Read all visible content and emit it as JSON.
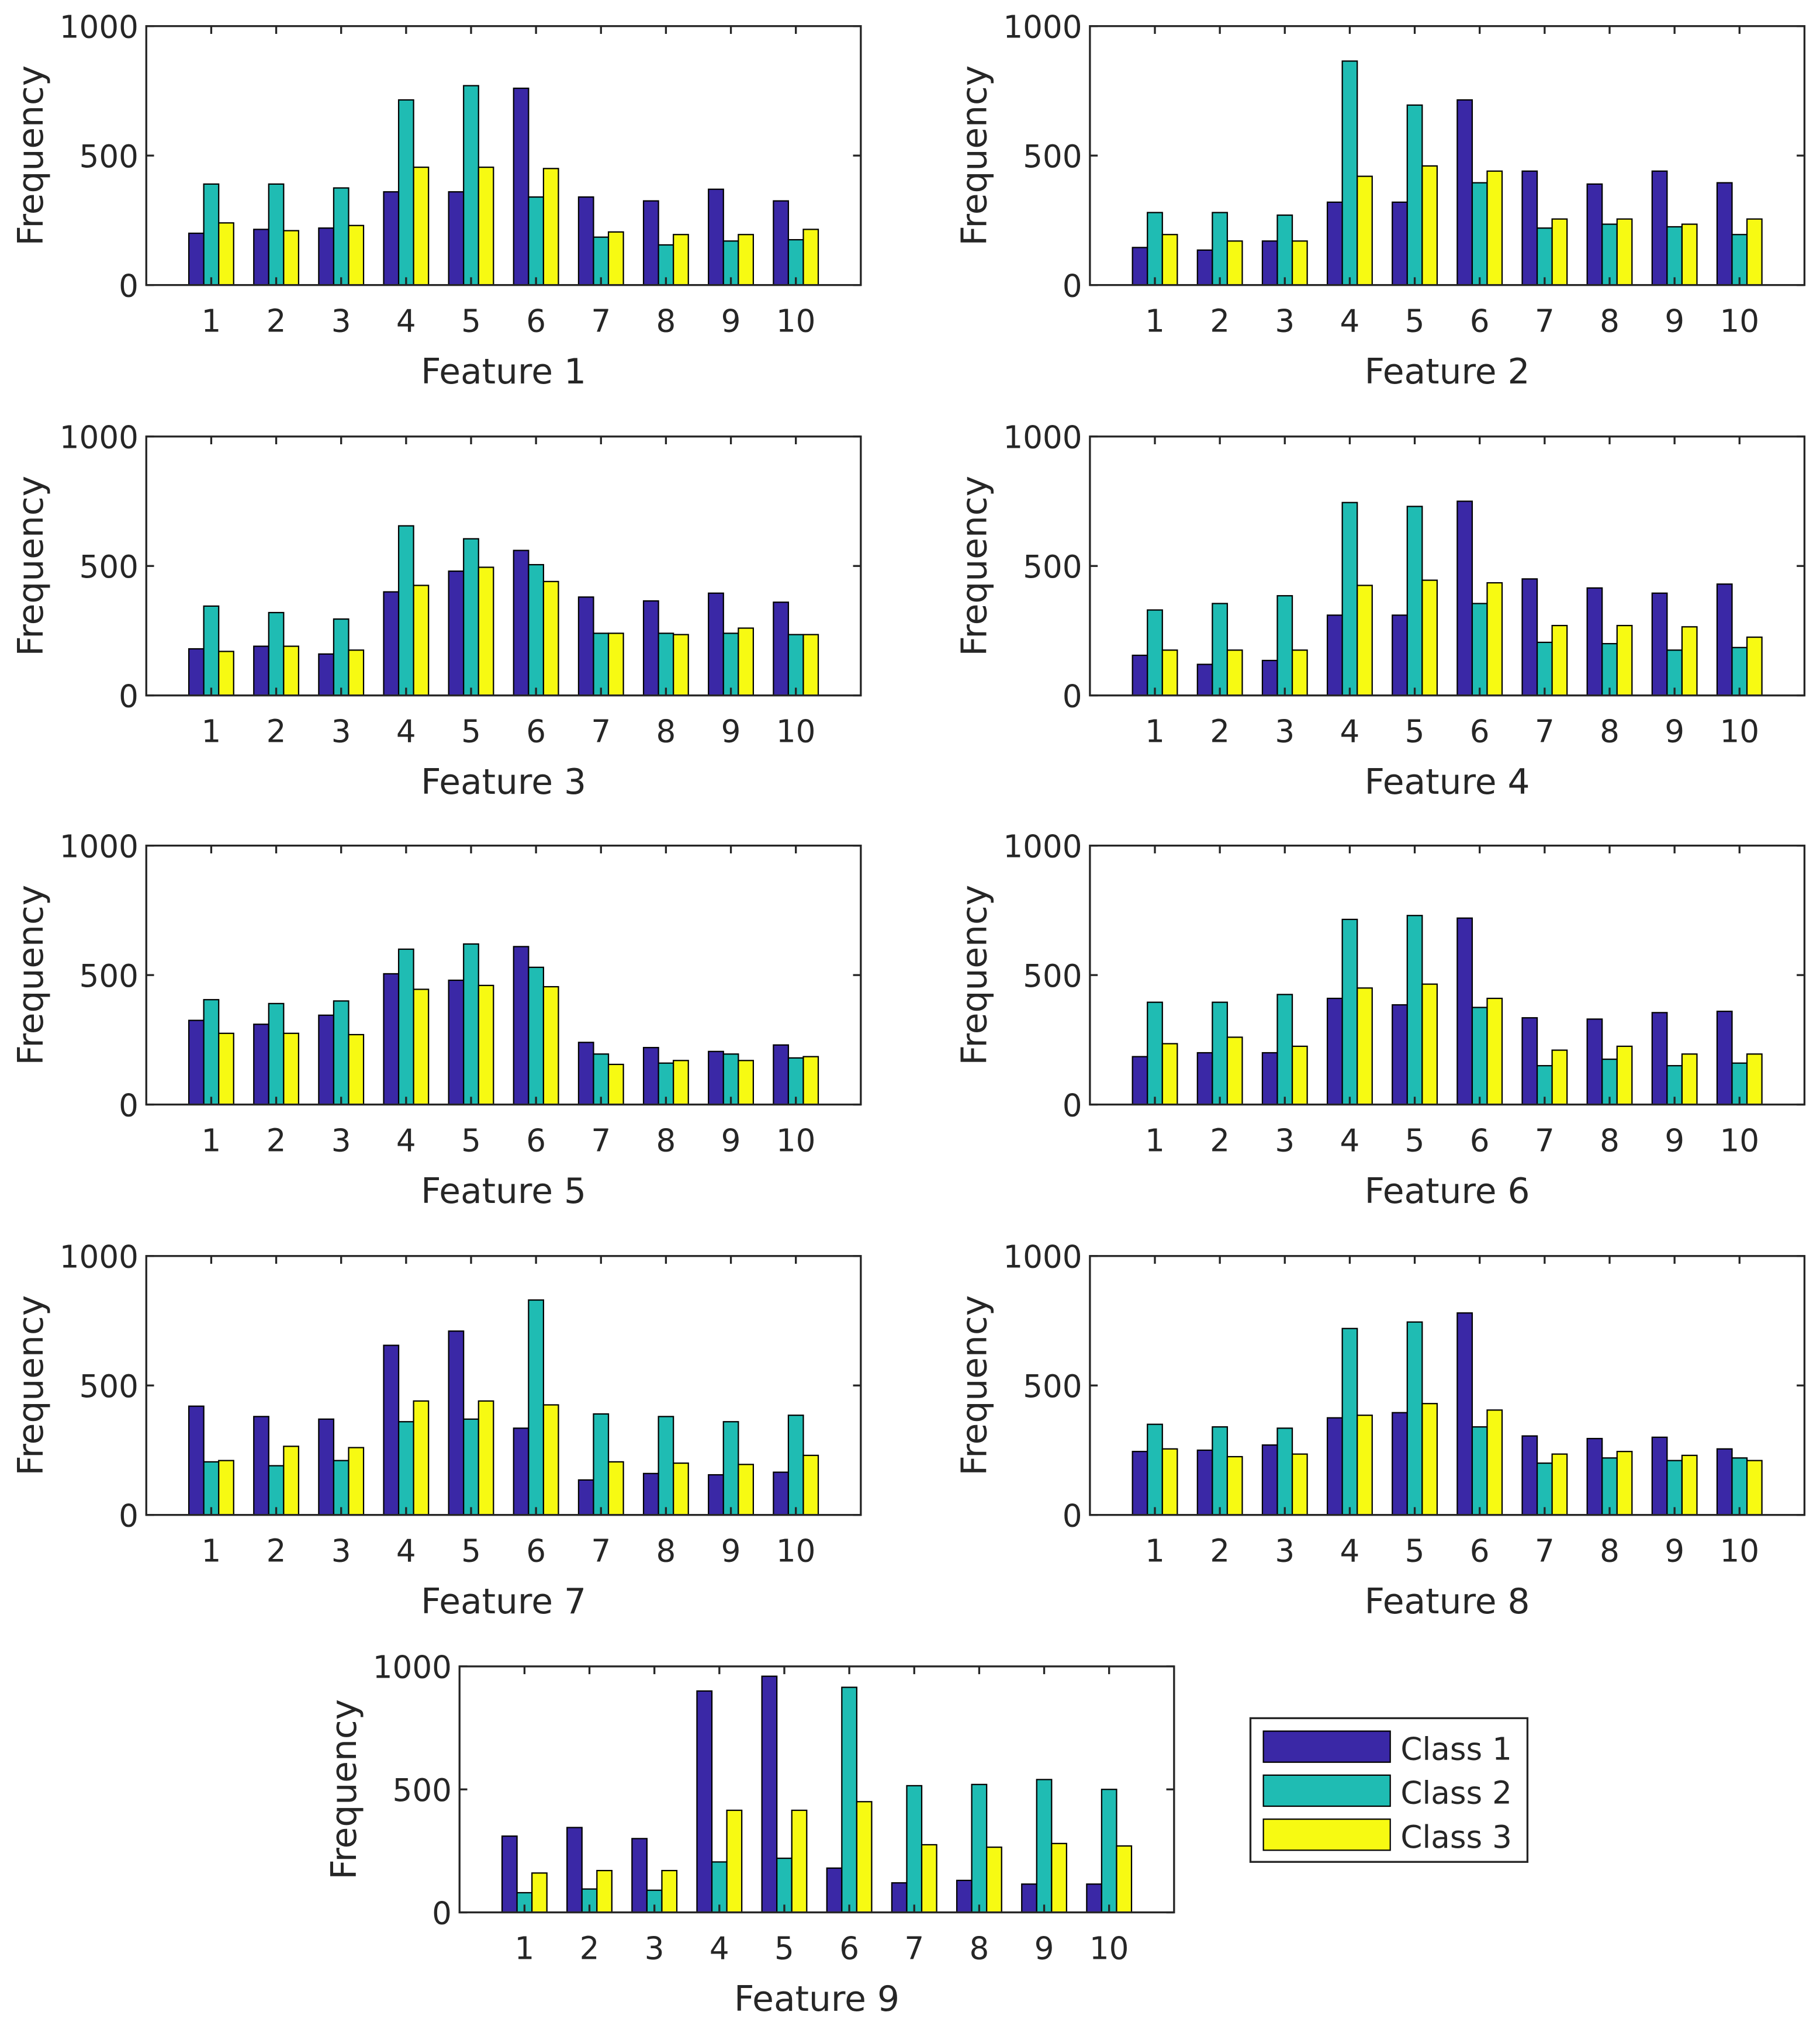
{
  "chart_data": {
    "type": "bar",
    "categories": [
      "1",
      "2",
      "3",
      "4",
      "5",
      "6",
      "7",
      "8",
      "9",
      "10"
    ],
    "ylabel": "Frequency",
    "ylim": [
      0,
      1000
    ],
    "yticks": [
      "0",
      "500",
      "1000"
    ],
    "legend": {
      "placement": "bottom-right",
      "entries": [
        "Class 1",
        "Class 2",
        "Class 3"
      ]
    },
    "colors": [
      "#3a28a6",
      "#1fbcb3",
      "#f7fa12"
    ],
    "panels": [
      {
        "xlabel": "Feature 1",
        "series": [
          {
            "name": "Class 1",
            "values": [
              200,
              215,
              220,
              360,
              360,
              760,
              340,
              325,
              370,
              325
            ]
          },
          {
            "name": "Class 2",
            "values": [
              390,
              390,
              375,
              715,
              770,
              340,
              185,
              155,
              170,
              175
            ]
          },
          {
            "name": "Class 3",
            "values": [
              240,
              210,
              230,
              455,
              455,
              450,
              205,
              195,
              195,
              215
            ]
          }
        ]
      },
      {
        "xlabel": "Feature 2",
        "series": [
          {
            "name": "Class 1",
            "values": [
              145,
              135,
              170,
              320,
              320,
              715,
              440,
              390,
              440,
              395
            ]
          },
          {
            "name": "Class 2",
            "values": [
              280,
              280,
              270,
              865,
              695,
              395,
              220,
              235,
              225,
              195
            ]
          },
          {
            "name": "Class 3",
            "values": [
              195,
              170,
              170,
              420,
              460,
              440,
              255,
              255,
              235,
              255
            ]
          }
        ]
      },
      {
        "xlabel": "Feature 3",
        "series": [
          {
            "name": "Class 1",
            "values": [
              180,
              190,
              160,
              400,
              480,
              560,
              380,
              365,
              395,
              360
            ]
          },
          {
            "name": "Class 2",
            "values": [
              345,
              320,
              295,
              655,
              605,
              505,
              240,
              240,
              240,
              235
            ]
          },
          {
            "name": "Class 3",
            "values": [
              170,
              190,
              175,
              425,
              495,
              440,
              240,
              235,
              260,
              235
            ]
          }
        ]
      },
      {
        "xlabel": "Feature 4",
        "series": [
          {
            "name": "Class 1",
            "values": [
              155,
              120,
              135,
              310,
              310,
              750,
              450,
              415,
              395,
              430
            ]
          },
          {
            "name": "Class 2",
            "values": [
              330,
              355,
              385,
              745,
              730,
              355,
              205,
              200,
              175,
              185
            ]
          },
          {
            "name": "Class 3",
            "values": [
              175,
              175,
              175,
              425,
              445,
              435,
              270,
              270,
              265,
              225
            ]
          }
        ]
      },
      {
        "xlabel": "Feature 5",
        "series": [
          {
            "name": "Class 1",
            "values": [
              325,
              310,
              345,
              505,
              480,
              610,
              240,
              220,
              205,
              230
            ]
          },
          {
            "name": "Class 2",
            "values": [
              405,
              390,
              400,
              600,
              620,
              530,
              195,
              160,
              195,
              180
            ]
          },
          {
            "name": "Class 3",
            "values": [
              275,
              275,
              270,
              445,
              460,
              455,
              155,
              170,
              170,
              185
            ]
          }
        ]
      },
      {
        "xlabel": "Feature 6",
        "series": [
          {
            "name": "Class 1",
            "values": [
              185,
              200,
              200,
              410,
              385,
              720,
              335,
              330,
              355,
              360
            ]
          },
          {
            "name": "Class 2",
            "values": [
              395,
              395,
              425,
              715,
              730,
              375,
              150,
              175,
              150,
              160
            ]
          },
          {
            "name": "Class 3",
            "values": [
              235,
              260,
              225,
              450,
              465,
              410,
              210,
              225,
              195,
              195
            ]
          }
        ]
      },
      {
        "xlabel": "Feature 7",
        "series": [
          {
            "name": "Class 1",
            "values": [
              420,
              380,
              370,
              655,
              710,
              335,
              135,
              160,
              155,
              165
            ]
          },
          {
            "name": "Class 2",
            "values": [
              205,
              190,
              210,
              360,
              370,
              830,
              390,
              380,
              360,
              385
            ]
          },
          {
            "name": "Class 3",
            "values": [
              210,
              265,
              260,
              440,
              440,
              425,
              205,
              200,
              195,
              230
            ]
          }
        ]
      },
      {
        "xlabel": "Feature 8",
        "series": [
          {
            "name": "Class 1",
            "values": [
              245,
              250,
              270,
              375,
              395,
              780,
              305,
              295,
              300,
              255
            ]
          },
          {
            "name": "Class 2",
            "values": [
              350,
              340,
              335,
              720,
              745,
              340,
              200,
              220,
              210,
              220
            ]
          },
          {
            "name": "Class 3",
            "values": [
              255,
              225,
              235,
              385,
              430,
              405,
              235,
              245,
              230,
              210
            ]
          }
        ]
      },
      {
        "xlabel": "Feature 9",
        "series": [
          {
            "name": "Class 1",
            "values": [
              310,
              345,
              300,
              900,
              960,
              180,
              120,
              130,
              115,
              115
            ]
          },
          {
            "name": "Class 2",
            "values": [
              80,
              95,
              90,
              205,
              220,
              915,
              515,
              520,
              540,
              500
            ]
          },
          {
            "name": "Class 3",
            "values": [
              160,
              170,
              170,
              415,
              415,
              450,
              275,
              265,
              280,
              270
            ]
          }
        ]
      }
    ]
  }
}
